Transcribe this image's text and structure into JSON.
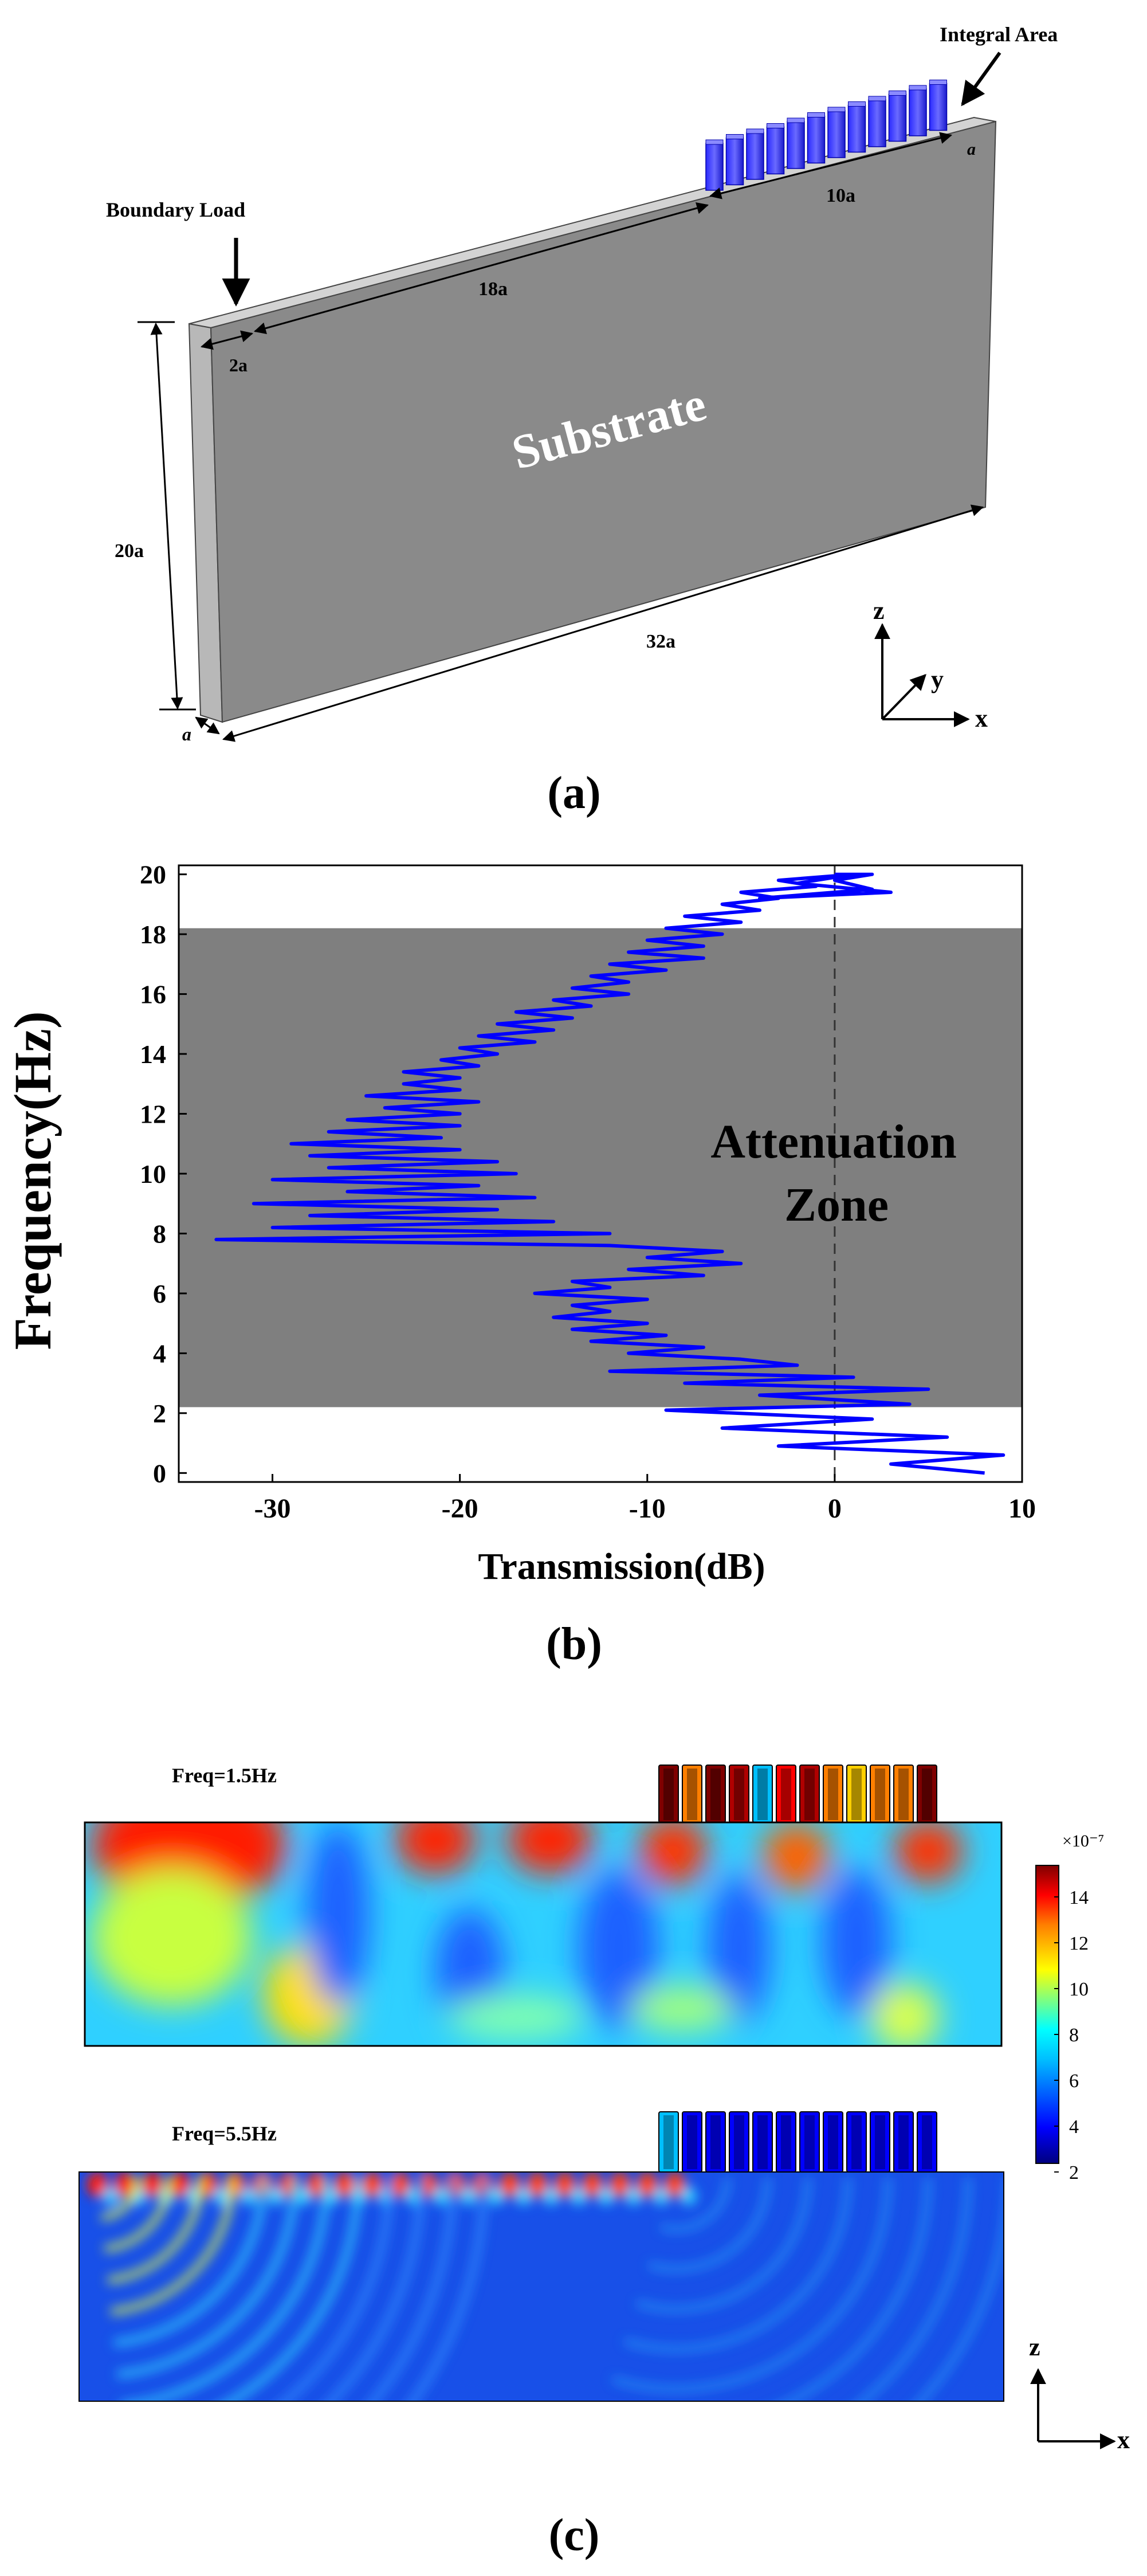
{
  "panel_a": {
    "integral_area_label": "Integral Area",
    "boundary_load_label": "Boundary Load",
    "substrate_label": "Substrate",
    "dim_a_top": "a",
    "dim_10a": "10a",
    "dim_18a": "18a",
    "dim_2a": "2a",
    "dim_20a": "20a",
    "dim_32a": "32a",
    "dim_a_bottom": "a",
    "axis_z": "z",
    "axis_y": "y",
    "axis_x": "x",
    "caption": "(a)"
  },
  "panel_b": {
    "zone_label_line1": "Attenuation",
    "zone_label_line2": "Zone",
    "caption": "(b)",
    "colors": {
      "zone": "#7f7f7f",
      "curve": "#0000ff"
    }
  },
  "chart_data": {
    "type": "line",
    "xlabel": "Transmission(dB)",
    "ylabel": "Frequency(Hz)",
    "xlim": [
      -35,
      10
    ],
    "ylim": [
      -0.3,
      20.3
    ],
    "xticks": [
      -30,
      -20,
      -10,
      0,
      10
    ],
    "yticks": [
      0,
      2,
      4,
      6,
      8,
      10,
      12,
      14,
      16,
      18,
      20
    ],
    "shaded_band": {
      "y_from": 2.2,
      "y_to": 18.2,
      "label": "Attenuation Zone"
    },
    "reference_line_x": 0,
    "series": [
      {
        "x": [
          8,
          3,
          9,
          -3,
          6,
          -6,
          2,
          -9,
          4,
          -4,
          5,
          -8,
          1,
          -12,
          -2,
          -5,
          -11,
          -7,
          -13,
          -9,
          -14,
          -10,
          -15,
          -12,
          -14,
          -10,
          -16,
          -12,
          -14,
          -7,
          -11,
          -5,
          -10,
          -6,
          -12,
          -33,
          -12,
          -30,
          -15,
          -28,
          -18,
          -31,
          -16,
          -26,
          -19,
          -30,
          -17,
          -27,
          -18,
          -28,
          -20,
          -29,
          -21,
          -27,
          -20,
          -26,
          -20,
          -24,
          -19,
          -25,
          -20,
          -23,
          -20,
          -23,
          -19,
          -21,
          -18,
          -20,
          -16,
          -19,
          -15,
          -18,
          -14,
          -17,
          -13,
          -15,
          -11,
          -14,
          -11,
          -13,
          -9,
          -12,
          -7,
          -11,
          -7,
          -10,
          -6,
          -9,
          -5,
          -8,
          -4,
          -6,
          -3,
          -5,
          -1,
          -3,
          1,
          -2,
          3,
          -4,
          2,
          0,
          2,
          0
        ],
        "y": [
          0.0,
          0.3,
          0.6,
          0.9,
          1.2,
          1.5,
          1.8,
          2.1,
          2.3,
          2.6,
          2.8,
          3.0,
          3.2,
          3.4,
          3.6,
          3.8,
          4.0,
          4.2,
          4.4,
          4.6,
          4.8,
          5.0,
          5.2,
          5.4,
          5.6,
          5.8,
          6.0,
          6.2,
          6.4,
          6.6,
          6.8,
          7.0,
          7.2,
          7.4,
          7.6,
          7.8,
          8.0,
          8.2,
          8.4,
          8.6,
          8.8,
          9.0,
          9.2,
          9.4,
          9.6,
          9.8,
          10.0,
          10.2,
          10.4,
          10.6,
          10.8,
          11.0,
          11.2,
          11.4,
          11.6,
          11.8,
          12.0,
          12.2,
          12.4,
          12.6,
          12.8,
          13.0,
          13.2,
          13.4,
          13.6,
          13.8,
          14.0,
          14.2,
          14.4,
          14.6,
          14.8,
          15.0,
          15.2,
          15.4,
          15.6,
          15.8,
          16.0,
          16.2,
          16.4,
          16.6,
          16.8,
          17.0,
          17.2,
          17.4,
          17.6,
          17.8,
          18.0,
          18.2,
          18.4,
          18.6,
          18.8,
          19.0,
          19.2,
          19.4,
          19.6,
          19.8,
          20.0,
          19.7,
          19.4,
          19.2,
          19.5,
          19.8,
          20.0,
          20.0
        ]
      }
    ]
  },
  "panel_c": {
    "top_freq_label": "Freq=1.5Hz",
    "bottom_freq_label": "Freq=5.5Hz",
    "colorbar_exponent": "×10⁻⁷",
    "colorbar_ticks": [
      "14",
      "12",
      "10",
      "8",
      "6",
      "4",
      "2"
    ],
    "axis_z": "z",
    "axis_x": "x",
    "caption": "(c)",
    "colormap": [
      "#00007f",
      "#0000ff",
      "#00bfff",
      "#00ffff",
      "#7fff7f",
      "#ffff00",
      "#ff7f00",
      "#ff0000",
      "#7f0000"
    ]
  }
}
